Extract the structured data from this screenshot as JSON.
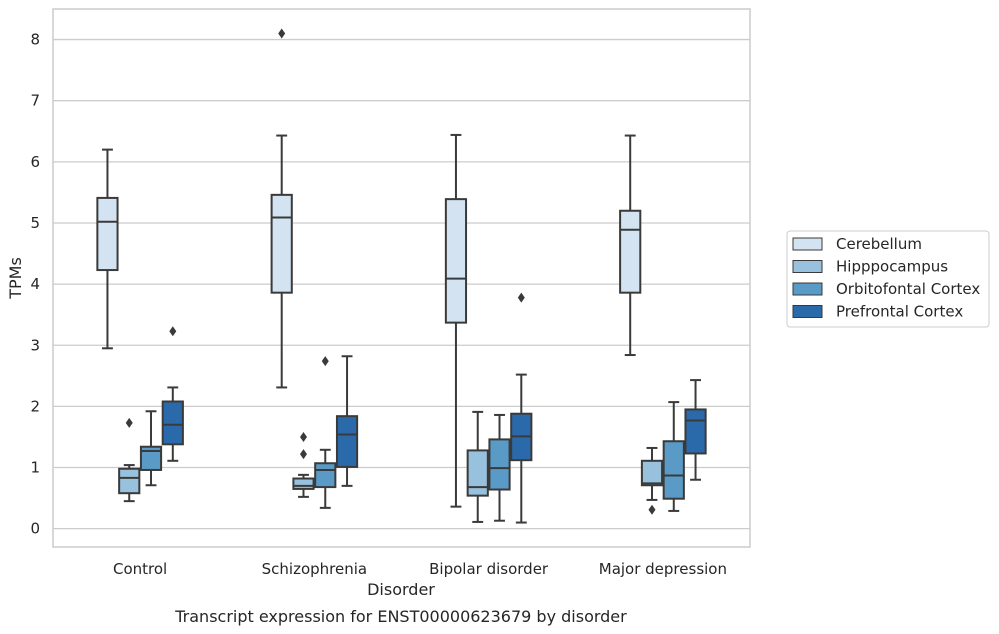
{
  "chart_data": {
    "type": "box",
    "title": "Transcript expression for ENST00000623679 by disorder",
    "xlabel": "Disorder",
    "ylabel": "TPMs",
    "ylim": [
      -0.3,
      8.5
    ],
    "yticks": [
      0,
      1,
      2,
      3,
      4,
      5,
      6,
      7,
      8
    ],
    "categories": [
      "Control",
      "Schizophrenia",
      "Bipolar disorder",
      "Major depression"
    ],
    "grid": "horizontal",
    "legend_position": "right",
    "series": [
      {
        "name": "Cerebellum",
        "color": "#d3e3f1",
        "boxes": [
          {
            "whislo": 2.95,
            "q1": 4.23,
            "med": 5.02,
            "q3": 5.41,
            "whishi": 6.2,
            "fliers": []
          },
          {
            "whislo": 2.31,
            "q1": 3.86,
            "med": 5.09,
            "q3": 5.46,
            "whishi": 6.43,
            "fliers": [
              8.1
            ]
          },
          {
            "whislo": 0.36,
            "q1": 3.37,
            "med": 4.09,
            "q3": 5.39,
            "whishi": 6.44,
            "fliers": []
          },
          {
            "whislo": 2.84,
            "q1": 3.86,
            "med": 4.89,
            "q3": 5.2,
            "whishi": 6.43,
            "fliers": []
          }
        ]
      },
      {
        "name": "Hipppocampus",
        "color": "#97c1dd",
        "boxes": [
          {
            "whislo": 0.45,
            "q1": 0.58,
            "med": 0.83,
            "q3": 0.98,
            "whishi": 1.04,
            "fliers": [
              1.73
            ]
          },
          {
            "whislo": 0.52,
            "q1": 0.65,
            "med": 0.7,
            "q3": 0.82,
            "whishi": 0.88,
            "fliers": [
              1.22,
              1.5
            ]
          },
          {
            "whislo": 0.11,
            "q1": 0.54,
            "med": 0.68,
            "q3": 1.28,
            "whishi": 1.91,
            "fliers": []
          },
          {
            "whislo": 0.47,
            "q1": 0.71,
            "med": 0.74,
            "q3": 1.11,
            "whishi": 1.32,
            "fliers": [
              0.31
            ]
          }
        ]
      },
      {
        "name": "Orbitofontal Cortex",
        "color": "#5a9ac6",
        "boxes": [
          {
            "whislo": 0.71,
            "q1": 0.96,
            "med": 1.27,
            "q3": 1.34,
            "whishi": 1.92,
            "fliers": []
          },
          {
            "whislo": 0.34,
            "q1": 0.68,
            "med": 0.96,
            "q3": 1.07,
            "whishi": 1.29,
            "fliers": [
              2.74
            ]
          },
          {
            "whislo": 0.13,
            "q1": 0.64,
            "med": 0.99,
            "q3": 1.46,
            "whishi": 1.86,
            "fliers": []
          },
          {
            "whislo": 0.29,
            "q1": 0.49,
            "med": 0.87,
            "q3": 1.43,
            "whishi": 2.07,
            "fliers": []
          }
        ]
      },
      {
        "name": "Prefrontal Cortex",
        "color": "#2b6aaa",
        "boxes": [
          {
            "whislo": 1.11,
            "q1": 1.38,
            "med": 1.7,
            "q3": 2.08,
            "whishi": 2.31,
            "fliers": [
              3.23
            ]
          },
          {
            "whislo": 0.7,
            "q1": 1.01,
            "med": 1.54,
            "q3": 1.84,
            "whishi": 2.82,
            "fliers": []
          },
          {
            "whislo": 0.1,
            "q1": 1.12,
            "med": 1.51,
            "q3": 1.88,
            "whishi": 2.52,
            "fliers": [
              3.78
            ]
          },
          {
            "whislo": 0.8,
            "q1": 1.23,
            "med": 1.77,
            "q3": 1.95,
            "whishi": 2.43,
            "fliers": []
          }
        ]
      }
    ]
  }
}
